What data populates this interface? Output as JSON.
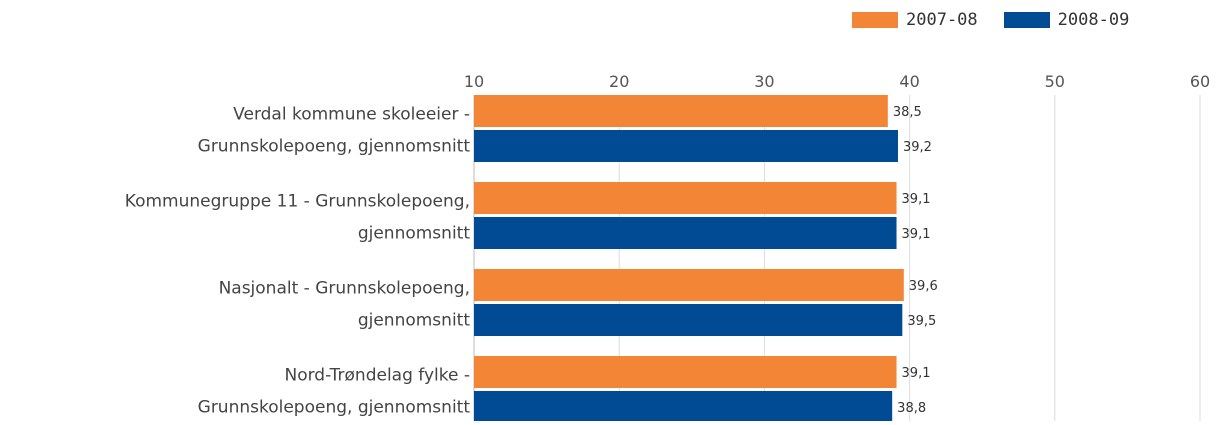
{
  "chart_data": {
    "type": "bar",
    "orientation": "horizontal",
    "categories": [
      [
        "Verdal kommune skoleeier -",
        "Grunnskolepoeng, gjennomsnitt"
      ],
      [
        "Kommunegruppe 11 - Grunnskolepoeng,",
        "gjennomsnitt"
      ],
      [
        "Nasjonalt - Grunnskolepoeng,",
        "gjennomsnitt"
      ],
      [
        "Nord-Trøndelag fylke -",
        "Grunnskolepoeng, gjennomsnitt"
      ]
    ],
    "series": [
      {
        "name": "2007-08",
        "color": "#f28536",
        "values": [
          38.5,
          39.1,
          39.6,
          39.1
        ],
        "labels": [
          "38,5",
          "39,1",
          "39,6",
          "39,1"
        ]
      },
      {
        "name": "2008-09",
        "color": "#004b93",
        "values": [
          39.2,
          39.1,
          39.5,
          38.8
        ],
        "labels": [
          "39,2",
          "39,1",
          "39,5",
          "38,8"
        ]
      }
    ],
    "x_ticks": [
      "10",
      "20",
      "30",
      "40",
      "50",
      "60"
    ],
    "xlim": [
      10,
      60
    ],
    "grid": true,
    "legend_position": "top-right"
  }
}
